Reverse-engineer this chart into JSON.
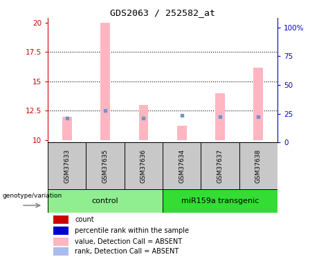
{
  "title": "GDS2063 / 252582_at",
  "samples": [
    "GSM37633",
    "GSM37635",
    "GSM37636",
    "GSM37634",
    "GSM37637",
    "GSM37638"
  ],
  "ylim_left": [
    9.8,
    20.4
  ],
  "ylim_right": [
    0,
    108
  ],
  "yticks_left": [
    10,
    12.5,
    15,
    17.5,
    20
  ],
  "yticks_right": [
    0,
    25,
    50,
    75,
    100
  ],
  "ytick_labels_left": [
    "10",
    "12.5",
    "15",
    "17.5",
    "20"
  ],
  "ytick_labels_right": [
    "0",
    "25",
    "50",
    "75",
    "100%"
  ],
  "bar_base": 10,
  "pink_bars": [
    12.0,
    20.0,
    13.0,
    11.2,
    14.0,
    16.2
  ],
  "blue_squares_y": [
    11.9,
    12.5,
    11.9,
    12.1,
    12.0,
    12.0
  ],
  "pink_color": "#FFB6C1",
  "blue_color": "#6699CC",
  "left_axis_color": "#CC0000",
  "right_axis_color": "#0000CC",
  "label_area_color": "#C8C8C8",
  "control_color": "#90EE90",
  "transgenic_color": "#33DD33",
  "dotted_lines": [
    12.5,
    15.0,
    17.5
  ],
  "legend_items": [
    {
      "label": "count",
      "color": "#CC0000"
    },
    {
      "label": "percentile rank within the sample",
      "color": "#0000CC"
    },
    {
      "label": "value, Detection Call = ABSENT",
      "color": "#FFB6C1"
    },
    {
      "label": "rank, Detection Call = ABSENT",
      "color": "#AABBEE"
    }
  ]
}
